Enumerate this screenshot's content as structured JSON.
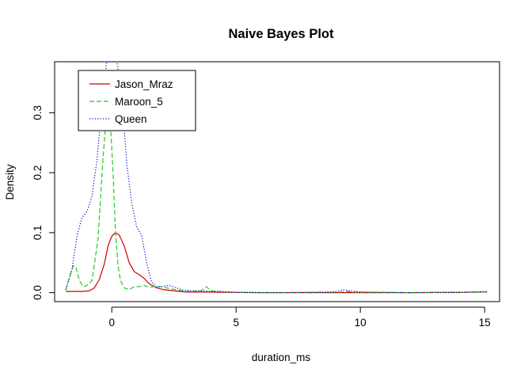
{
  "chart_data": {
    "type": "line",
    "title": "Naive Bayes Plot",
    "xlabel": "duration_ms",
    "ylabel": "Density",
    "xlim": [
      -2.3,
      15.6
    ],
    "ylim": [
      -0.015,
      0.385
    ],
    "x_ticks": [
      0,
      5,
      10,
      15
    ],
    "x_tick_labels": [
      "0",
      "5",
      "10",
      "15"
    ],
    "y_ticks": [
      0.0,
      0.1,
      0.2,
      0.3
    ],
    "y_tick_labels": [
      "0.0",
      "0.1",
      "0.2",
      "0.3"
    ],
    "grid": false,
    "legend_position": "top-left",
    "series": [
      {
        "name": "Jason_Mraz",
        "color": "#cc0000",
        "dash": "solid",
        "x": [
          -1.85,
          -1.2,
          -0.9,
          -0.7,
          -0.5,
          -0.3,
          -0.15,
          0,
          0.15,
          0.3,
          0.5,
          0.7,
          0.9,
          1.1,
          1.3,
          1.5,
          1.8,
          2.1,
          2.5,
          3.0,
          3.5,
          4.0,
          4.5,
          6.0,
          9.0,
          12.0,
          15.1
        ],
        "y": [
          0.002,
          0.002,
          0.003,
          0.008,
          0.022,
          0.048,
          0.078,
          0.094,
          0.1,
          0.096,
          0.078,
          0.05,
          0.035,
          0.03,
          0.024,
          0.015,
          0.008,
          0.005,
          0.003,
          0.001,
          0.001,
          0.001,
          0.0005,
          0.0,
          0.0,
          0.0,
          0.001
        ]
      },
      {
        "name": "Maroon_5",
        "color": "#22cc22",
        "dash": "dashed",
        "x": [
          -1.85,
          -1.7,
          -1.55,
          -1.45,
          -1.3,
          -1.15,
          -1.0,
          -0.8,
          -0.55,
          -0.45,
          -0.35,
          -0.25,
          -0.15,
          -0.05,
          0.05,
          0.15,
          0.25,
          0.35,
          0.5,
          0.7,
          0.9,
          1.1,
          1.3,
          1.5,
          1.7,
          2.0,
          2.3,
          2.7,
          3.0,
          3.6,
          3.8,
          4.0,
          4.5,
          6.0,
          9.2,
          9.5,
          9.8,
          12.0,
          15.1
        ],
        "y": [
          0.005,
          0.025,
          0.045,
          0.043,
          0.02,
          0.01,
          0.012,
          0.02,
          0.09,
          0.16,
          0.225,
          0.28,
          0.295,
          0.28,
          0.2,
          0.1,
          0.045,
          0.02,
          0.008,
          0.005,
          0.01,
          0.01,
          0.012,
          0.009,
          0.01,
          0.01,
          0.007,
          0.004,
          0.002,
          0.003,
          0.01,
          0.003,
          0.001,
          0.0,
          0.001,
          0.002,
          0.001,
          0.0,
          0.001
        ]
      },
      {
        "name": "Queen",
        "color": "#0000cc",
        "dash": "dotted",
        "x": [
          -1.85,
          -1.6,
          -1.4,
          -1.2,
          -1.0,
          -0.8,
          -0.6,
          -0.45,
          -0.35,
          -0.2,
          0.2,
          0.35,
          0.5,
          0.6,
          0.8,
          1.0,
          1.2,
          1.4,
          1.6,
          1.8,
          2.0,
          2.3,
          2.6,
          2.9,
          3.2,
          3.6,
          4.0,
          4.4,
          5.0,
          7.0,
          9.0,
          9.3,
          9.6,
          10.0,
          12.0,
          14.0,
          15.1
        ],
        "y": [
          0.005,
          0.04,
          0.095,
          0.125,
          0.135,
          0.16,
          0.22,
          0.29,
          0.34,
          0.385,
          0.385,
          0.35,
          0.275,
          0.215,
          0.15,
          0.11,
          0.095,
          0.05,
          0.018,
          0.01,
          0.01,
          0.012,
          0.008,
          0.004,
          0.003,
          0.003,
          0.002,
          0.002,
          0.0005,
          0.0,
          0.001,
          0.005,
          0.003,
          0.001,
          0.0,
          0.0,
          0.002
        ]
      }
    ]
  }
}
